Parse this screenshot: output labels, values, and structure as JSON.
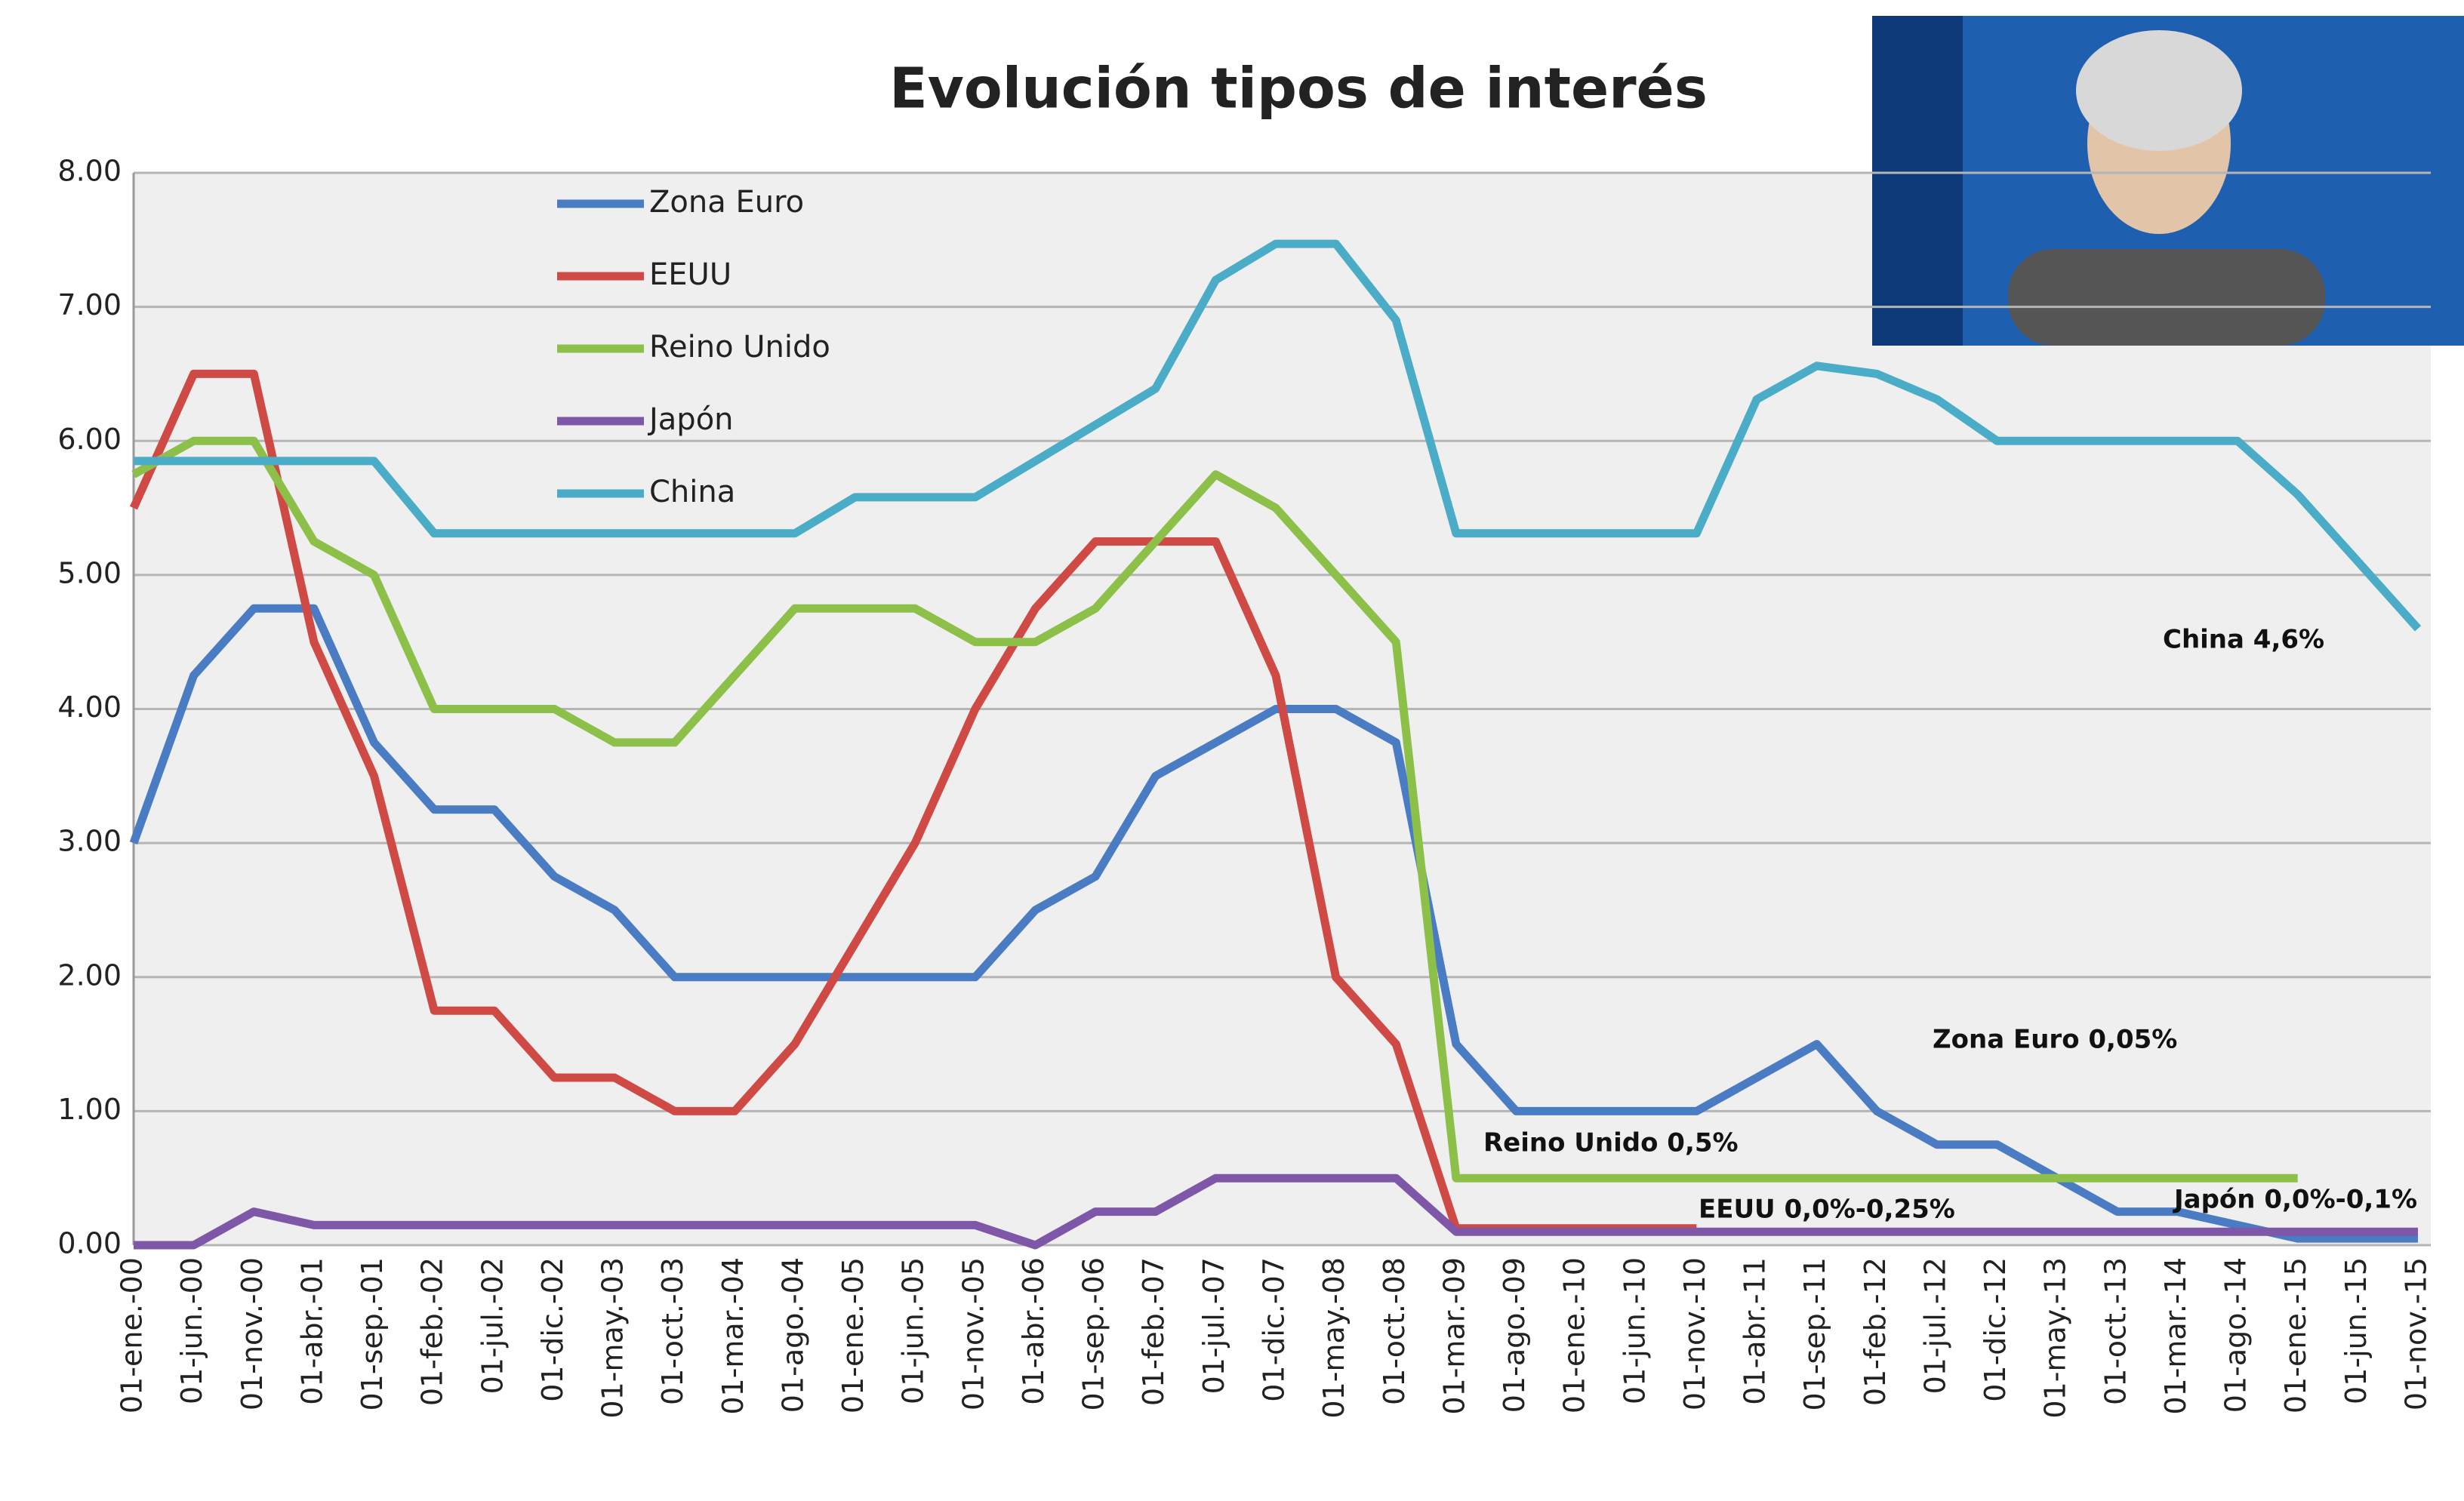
{
  "chart_data": {
    "type": "line",
    "title": "Evolución tipos de interés",
    "categories": [
      "01-ene.-00",
      "01-jun.-00",
      "01-nov.-00",
      "01-abr.-01",
      "01-sep.-01",
      "01-feb.-02",
      "01-jul.-02",
      "01-dic.-02",
      "01-may.-03",
      "01-oct.-03",
      "01-mar.-04",
      "01-ago.-04",
      "01-ene.-05",
      "01-jun.-05",
      "01-nov.-05",
      "01-abr.-06",
      "01-sep.-06",
      "01-feb.-07",
      "01-jul.-07",
      "01-dic.-07",
      "01-may.-08",
      "01-oct.-08",
      "01-mar.-09",
      "01-ago.-09",
      "01-ene.-10",
      "01-jun.-10",
      "01-nov.-10",
      "01-abr.-11",
      "01-sep.-11",
      "01-feb.-12",
      "01-jul.-12",
      "01-dic.-12",
      "01-may.-13",
      "01-oct.-13",
      "01-mar.-14",
      "01-ago.-14",
      "01-ene.-15",
      "01-jun.-15",
      "01-nov.-15"
    ],
    "series": [
      {
        "name": "Zona Euro",
        "color": "#4a7cc4",
        "values": [
          3.0,
          4.25,
          4.75,
          4.75,
          3.75,
          3.25,
          3.25,
          2.75,
          2.5,
          2.0,
          2.0,
          2.0,
          2.0,
          2.0,
          2.0,
          2.5,
          2.75,
          3.5,
          3.75,
          4.0,
          4.0,
          3.75,
          1.5,
          1.0,
          1.0,
          1.0,
          1.0,
          1.25,
          1.5,
          1.0,
          0.75,
          0.75,
          0.5,
          0.25,
          0.25,
          0.15,
          0.05,
          0.05,
          0.05
        ]
      },
      {
        "name": "EEUU",
        "color": "#cf4a45",
        "values": [
          5.5,
          6.5,
          6.5,
          4.5,
          3.5,
          1.75,
          1.75,
          1.25,
          1.25,
          1.0,
          1.0,
          1.5,
          2.25,
          3.0,
          4.0,
          4.75,
          5.25,
          5.25,
          5.25,
          4.25,
          2.0,
          1.5,
          0.125,
          0.125,
          0.125,
          0.125,
          0.125,
          null,
          null,
          null,
          null,
          null,
          null,
          null,
          null,
          null,
          null,
          null,
          null
        ]
      },
      {
        "name": "Reino Unido",
        "color": "#8dc049",
        "values": [
          5.75,
          6.0,
          6.0,
          5.25,
          5.0,
          4.0,
          4.0,
          4.0,
          3.75,
          3.75,
          4.25,
          4.75,
          4.75,
          4.75,
          4.5,
          4.5,
          4.75,
          5.25,
          5.75,
          5.5,
          5.0,
          4.5,
          0.5,
          0.5,
          0.5,
          0.5,
          0.5,
          0.5,
          0.5,
          0.5,
          0.5,
          0.5,
          0.5,
          0.5,
          0.5,
          0.5,
          0.5,
          null,
          null
        ]
      },
      {
        "name": "Japón",
        "color": "#7e57a8",
        "values": [
          0,
          0,
          0.25,
          0.15,
          0.15,
          0.15,
          0.15,
          0.15,
          0.15,
          0.15,
          0.15,
          0.15,
          0.15,
          0.15,
          0.15,
          0,
          0.25,
          0.25,
          0.5,
          0.5,
          0.5,
          0.5,
          0.1,
          0.1,
          0.1,
          0.1,
          0.1,
          0.1,
          0.1,
          0.1,
          0.1,
          0.1,
          0.1,
          0.1,
          0.1,
          0.1,
          0.1,
          0.1,
          0.1
        ]
      },
      {
        "name": "China",
        "color": "#4aacc6",
        "values": [
          5.85,
          5.85,
          5.85,
          5.85,
          5.85,
          5.31,
          5.31,
          5.31,
          5.31,
          5.31,
          5.31,
          5.31,
          5.58,
          5.58,
          5.58,
          5.85,
          6.12,
          6.39,
          7.2,
          7.47,
          7.47,
          6.9,
          5.31,
          5.31,
          5.31,
          5.31,
          5.31,
          6.31,
          6.56,
          6.5,
          6.31,
          6.0,
          6.0,
          6.0,
          6.0,
          6.0,
          5.6,
          5.1,
          4.6
        ]
      }
    ],
    "ylim": [
      0,
      8
    ],
    "yticks": [
      {
        "value": 0,
        "label": "0.00"
      },
      {
        "value": 1,
        "label": "1.00"
      },
      {
        "value": 2,
        "label": "2.00"
      },
      {
        "value": 3,
        "label": "3.00"
      },
      {
        "value": 4,
        "label": "4.00"
      },
      {
        "value": 5,
        "label": "5.00"
      },
      {
        "value": 6,
        "label": "6.00"
      },
      {
        "value": 7,
        "label": "7.00"
      },
      {
        "value": 8,
        "label": "8.00"
      }
    ],
    "grid": true,
    "legend": "upper left",
    "annotations": [
      "China 4,6%",
      "Zona Euro 0,05%",
      "Reino Unido 0,5%",
      "EEUU 0,0%-0,25%",
      "Japón 0,0%-0,1%"
    ]
  }
}
